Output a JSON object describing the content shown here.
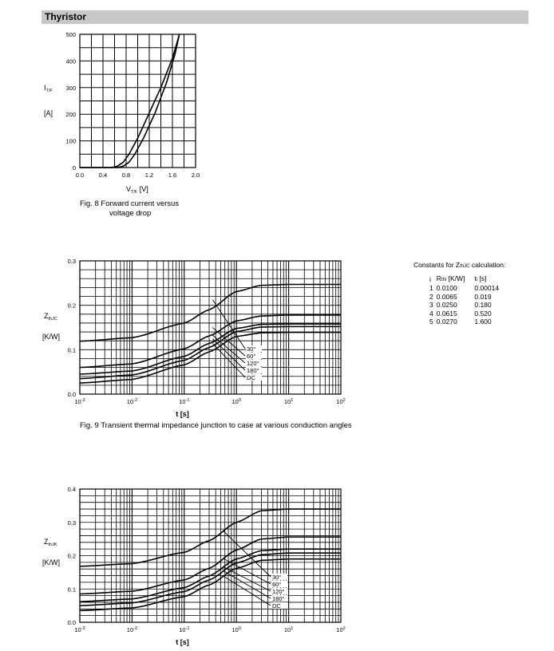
{
  "header": {
    "title": "Thyristor"
  },
  "fig8": {
    "caption_line1": "Fig. 8  Forward current versus",
    "caption_line2": "voltage drop",
    "ylabel": "I",
    "ylabel_sub": "T/F",
    "yunit": "[A]",
    "xlabel": "V",
    "xlabel_sub": "T/F",
    "xunit": "[V]"
  },
  "fig9": {
    "caption": "Fig. 9  Transient thermal impedance junction to case at various conduction angles",
    "ylabel": "Z",
    "ylabel_sub": "thJC",
    "yunit": "[K/W]",
    "xlabel": "t  [s]"
  },
  "fig10": {
    "ylabel": "Z",
    "ylabel_sub": "thJK",
    "yunit": "[K/W]",
    "xlabel": "t  [s]"
  },
  "constants": {
    "title_prefix": "Constants for Z",
    "title_sub": "thJC",
    "title_suffix": " calculation:",
    "col_i": "i",
    "col_r": "R",
    "col_r_sub": "thi",
    "col_r_unit": " [K/W]",
    "col_t": "t",
    "col_t_sub": "i",
    "col_t_unit": " [s]",
    "rows": [
      {
        "i": "1",
        "r": "0.0100",
        "t": "0.00014"
      },
      {
        "i": "2",
        "r": "0.0065",
        "t": "0.019"
      },
      {
        "i": "3",
        "r": "0.0250",
        "t": "0.180"
      },
      {
        "i": "4",
        "r": "0.0615",
        "t": "0.520"
      },
      {
        "i": "5",
        "r": "0.0270",
        "t": "1.600"
      }
    ]
  },
  "chart_data": [
    {
      "type": "line",
      "xlabel": "V T/F [V]",
      "ylabel": "I T/F [A]",
      "xlim": [
        0.0,
        2.0
      ],
      "ylim": [
        0,
        500
      ],
      "x_ticks": [
        "0.0",
        "0.4",
        "0.8",
        "1.2",
        "1.6",
        "2.0"
      ],
      "y_ticks": [
        "0",
        "100",
        "200",
        "300",
        "400",
        "500"
      ],
      "grid": true,
      "series": [
        {
          "x": [
            0.0,
            0.55,
            0.65,
            0.75,
            0.85,
            1.0,
            1.2,
            1.4,
            1.6,
            1.72
          ],
          "y": [
            0,
            0,
            5,
            20,
            50,
            110,
            205,
            300,
            410,
            500
          ]
        },
        {
          "x": [
            0.0,
            0.65,
            0.75,
            0.85,
            0.95,
            1.1,
            1.3,
            1.5,
            1.65,
            1.72
          ],
          "y": [
            0,
            0,
            5,
            20,
            50,
            110,
            205,
            320,
            430,
            500
          ]
        }
      ]
    },
    {
      "type": "line",
      "xlabel": "t [s]",
      "ylabel": "Z thJC [K/W]",
      "x_scale": "log",
      "xlim": [
        0.001,
        100
      ],
      "ylim": [
        0.0,
        0.3
      ],
      "x_ticks": [
        "10-3",
        "10-2",
        "10-1",
        "100",
        "101",
        "102"
      ],
      "y_ticks": [
        "0.0",
        "0.1",
        "0.2",
        "0.3"
      ],
      "grid": true,
      "series": [
        {
          "name": "30°",
          "x": [
            0.001,
            0.01,
            0.1,
            0.3,
            1,
            3,
            10,
            100
          ],
          "y": [
            0.119,
            0.127,
            0.16,
            0.19,
            0.231,
            0.245,
            0.247,
            0.247
          ]
        },
        {
          "name": "60°",
          "x": [
            0.001,
            0.01,
            0.1,
            0.3,
            1,
            3,
            10,
            100
          ],
          "y": [
            0.06,
            0.068,
            0.102,
            0.131,
            0.165,
            0.176,
            0.178,
            0.178
          ]
        },
        {
          "name": "120°",
          "x": [
            0.001,
            0.01,
            0.1,
            0.3,
            1,
            3,
            10,
            100
          ],
          "y": [
            0.045,
            0.052,
            0.085,
            0.114,
            0.148,
            0.157,
            0.158,
            0.158
          ]
        },
        {
          "name": "180°",
          "x": [
            0.001,
            0.01,
            0.1,
            0.3,
            1,
            3,
            10,
            100
          ],
          "y": [
            0.035,
            0.043,
            0.076,
            0.105,
            0.141,
            0.151,
            0.152,
            0.152
          ]
        },
        {
          "name": "DC",
          "x": [
            0.001,
            0.01,
            0.1,
            0.3,
            1,
            3,
            10,
            100
          ],
          "y": [
            0.025,
            0.033,
            0.066,
            0.095,
            0.13,
            0.138,
            0.139,
            0.139
          ]
        }
      ]
    },
    {
      "type": "line",
      "xlabel": "t [s]",
      "ylabel": "Z thJK [K/W]",
      "x_scale": "log",
      "xlim": [
        0.001,
        100
      ],
      "ylim": [
        0.0,
        0.4
      ],
      "x_ticks": [
        "10-3",
        "10-2",
        "10-1",
        "100",
        "101",
        "102"
      ],
      "y_ticks": [
        "0.0",
        "0.1",
        "0.2",
        "0.3",
        "0.4"
      ],
      "grid": true,
      "series": [
        {
          "name": "30°",
          "x": [
            0.001,
            0.01,
            0.1,
            0.3,
            1,
            3,
            10,
            100
          ],
          "y": [
            0.168,
            0.176,
            0.21,
            0.245,
            0.3,
            0.335,
            0.34,
            0.34
          ]
        },
        {
          "name": "60°",
          "x": [
            0.001,
            0.01,
            0.1,
            0.3,
            1,
            3,
            10,
            100
          ],
          "y": [
            0.085,
            0.093,
            0.127,
            0.162,
            0.217,
            0.25,
            0.256,
            0.256
          ]
        },
        {
          "name": "120°",
          "x": [
            0.001,
            0.01,
            0.1,
            0.3,
            1,
            3,
            10,
            100
          ],
          "y": [
            0.062,
            0.07,
            0.104,
            0.139,
            0.19,
            0.215,
            0.22,
            0.22
          ]
        },
        {
          "name": "180°",
          "x": [
            0.001,
            0.01,
            0.1,
            0.3,
            1,
            3,
            10,
            100
          ],
          "y": [
            0.05,
            0.058,
            0.092,
            0.127,
            0.178,
            0.203,
            0.208,
            0.208
          ]
        },
        {
          "name": "DC",
          "x": [
            0.001,
            0.01,
            0.1,
            0.3,
            1,
            3,
            10,
            100
          ],
          "y": [
            0.035,
            0.043,
            0.077,
            0.112,
            0.162,
            0.186,
            0.19,
            0.19
          ]
        }
      ]
    }
  ]
}
